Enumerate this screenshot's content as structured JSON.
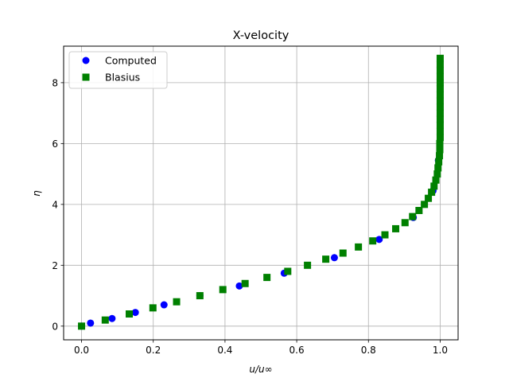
{
  "chart_data": {
    "type": "scatter",
    "title": "X-velocity",
    "xlabel": "u/u∞",
    "ylabel": "η",
    "xlim": [
      -0.05,
      1.05
    ],
    "ylim": [
      -0.45,
      9.2
    ],
    "xticks": [
      0.0,
      0.2,
      0.4,
      0.6,
      0.8,
      1.0
    ],
    "xtick_labels": [
      "0.0",
      "0.2",
      "0.4",
      "0.6",
      "0.8",
      "1.0"
    ],
    "yticks": [
      0,
      2,
      4,
      6,
      8
    ],
    "ytick_labels": [
      "0",
      "2",
      "4",
      "6",
      "8"
    ],
    "grid": true,
    "legend_position": "upper-left",
    "series": [
      {
        "name": "Computed",
        "marker": "circle",
        "color": "#0000ff",
        "points": [
          [
            0.0,
            0.0
          ],
          [
            0.025,
            0.1
          ],
          [
            0.085,
            0.25
          ],
          [
            0.15,
            0.45
          ],
          [
            0.23,
            0.7
          ],
          [
            0.33,
            1.0
          ],
          [
            0.44,
            1.32
          ],
          [
            0.565,
            1.74
          ],
          [
            0.705,
            2.25
          ],
          [
            0.83,
            2.85
          ],
          [
            0.925,
            3.57
          ],
          [
            0.98,
            4.45
          ],
          [
            0.995,
            5.45
          ],
          [
            1.0,
            6.7
          ]
        ]
      },
      {
        "name": "Blasius",
        "marker": "square",
        "color": "#008000",
        "points": [
          [
            0.0,
            0.0
          ],
          [
            0.066,
            0.2
          ],
          [
            0.133,
            0.4
          ],
          [
            0.199,
            0.6
          ],
          [
            0.265,
            0.8
          ],
          [
            0.33,
            1.0
          ],
          [
            0.394,
            1.2
          ],
          [
            0.456,
            1.4
          ],
          [
            0.517,
            1.6
          ],
          [
            0.575,
            1.8
          ],
          [
            0.63,
            2.0
          ],
          [
            0.681,
            2.2
          ],
          [
            0.729,
            2.4
          ],
          [
            0.772,
            2.6
          ],
          [
            0.812,
            2.8
          ],
          [
            0.846,
            3.0
          ],
          [
            0.876,
            3.2
          ],
          [
            0.902,
            3.4
          ],
          [
            0.923,
            3.6
          ],
          [
            0.941,
            3.8
          ],
          [
            0.956,
            4.0
          ],
          [
            0.967,
            4.2
          ],
          [
            0.976,
            4.4
          ],
          [
            0.983,
            4.6
          ],
          [
            0.988,
            4.8
          ],
          [
            0.992,
            5.0
          ],
          [
            0.994,
            5.2
          ],
          [
            0.996,
            5.4
          ],
          [
            0.998,
            5.6
          ],
          [
            0.999,
            5.8
          ],
          [
            0.999,
            6.0
          ],
          [
            1.0,
            6.2
          ],
          [
            1.0,
            6.4
          ],
          [
            1.0,
            6.6
          ],
          [
            1.0,
            6.8
          ],
          [
            1.0,
            7.0
          ],
          [
            1.0,
            7.2
          ],
          [
            1.0,
            7.4
          ],
          [
            1.0,
            7.6
          ],
          [
            1.0,
            7.8
          ],
          [
            1.0,
            8.0
          ],
          [
            1.0,
            8.2
          ],
          [
            1.0,
            8.4
          ],
          [
            1.0,
            8.6
          ],
          [
            1.0,
            8.8
          ]
        ]
      }
    ]
  }
}
